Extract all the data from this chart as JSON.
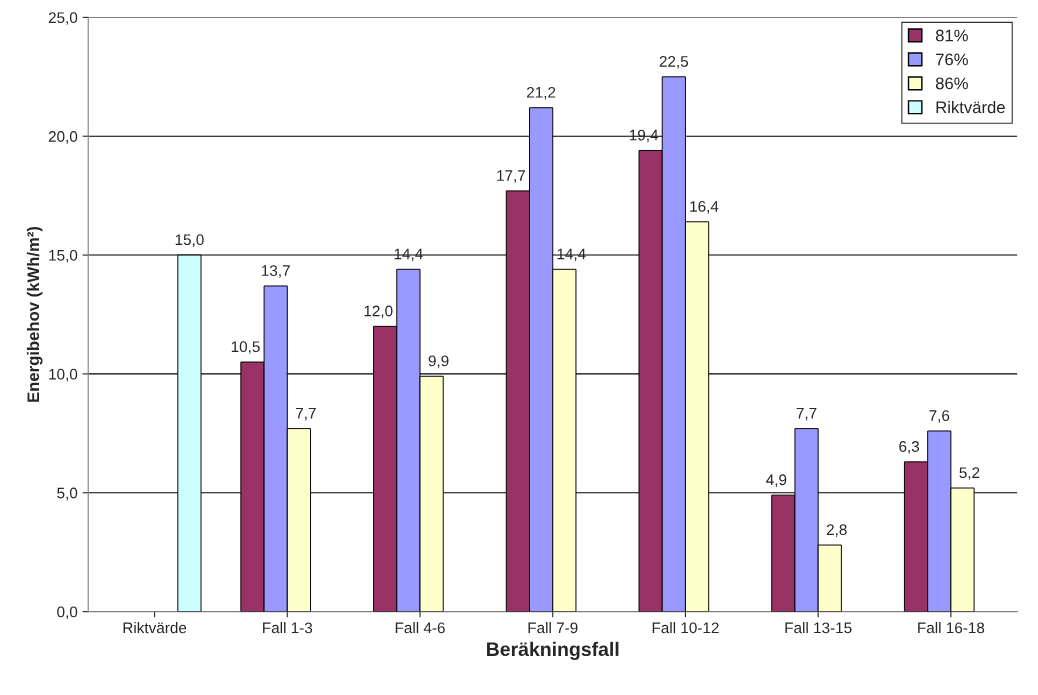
{
  "chart_data": {
    "type": "bar",
    "xlabel": "Beräkningsfall",
    "ylabel": "Energibehov (kWh/m²)",
    "categories": [
      "Riktvärde",
      "Fall 1-3",
      "Fall 4-6",
      "Fall 7-9",
      "Fall 10-12",
      "Fall 13-15",
      "Fall 16-18"
    ],
    "series": [
      {
        "name": "81%",
        "color": "#993366",
        "values": [
          null,
          10.5,
          12.0,
          17.7,
          19.4,
          4.9,
          6.3
        ],
        "value_labels": [
          null,
          "10,5",
          "12,0",
          "17,7",
          "19,4",
          "4,9",
          "6,3"
        ]
      },
      {
        "name": "76%",
        "color": "#9999ff",
        "values": [
          null,
          13.7,
          14.4,
          21.2,
          22.5,
          7.7,
          7.6
        ],
        "value_labels": [
          null,
          "13,7",
          "14,4",
          "21,2",
          "22,5",
          "7,7",
          "7,6"
        ]
      },
      {
        "name": "86%",
        "color": "#ffffcc",
        "values": [
          null,
          7.7,
          9.9,
          14.4,
          16.4,
          2.8,
          5.2
        ],
        "value_labels": [
          null,
          "7,7",
          "9,9",
          "14,4",
          "16,4",
          "2,8",
          "5,2"
        ]
      },
      {
        "name": "Riktvärde",
        "color": "#ccffff",
        "values": [
          15.0,
          null,
          null,
          null,
          null,
          null,
          null
        ],
        "value_labels": [
          "15,0",
          null,
          null,
          null,
          null,
          null,
          null
        ]
      }
    ],
    "ylim": [
      0,
      25
    ],
    "yticks": [
      {
        "value": 0,
        "label": "0,0"
      },
      {
        "value": 5,
        "label": "5,0"
      },
      {
        "value": 10,
        "label": "10,0"
      },
      {
        "value": 15,
        "label": "15,0"
      },
      {
        "value": 20,
        "label": "20,0"
      },
      {
        "value": 25,
        "label": "25,0"
      }
    ],
    "grid": "y",
    "legend": "top right"
  }
}
